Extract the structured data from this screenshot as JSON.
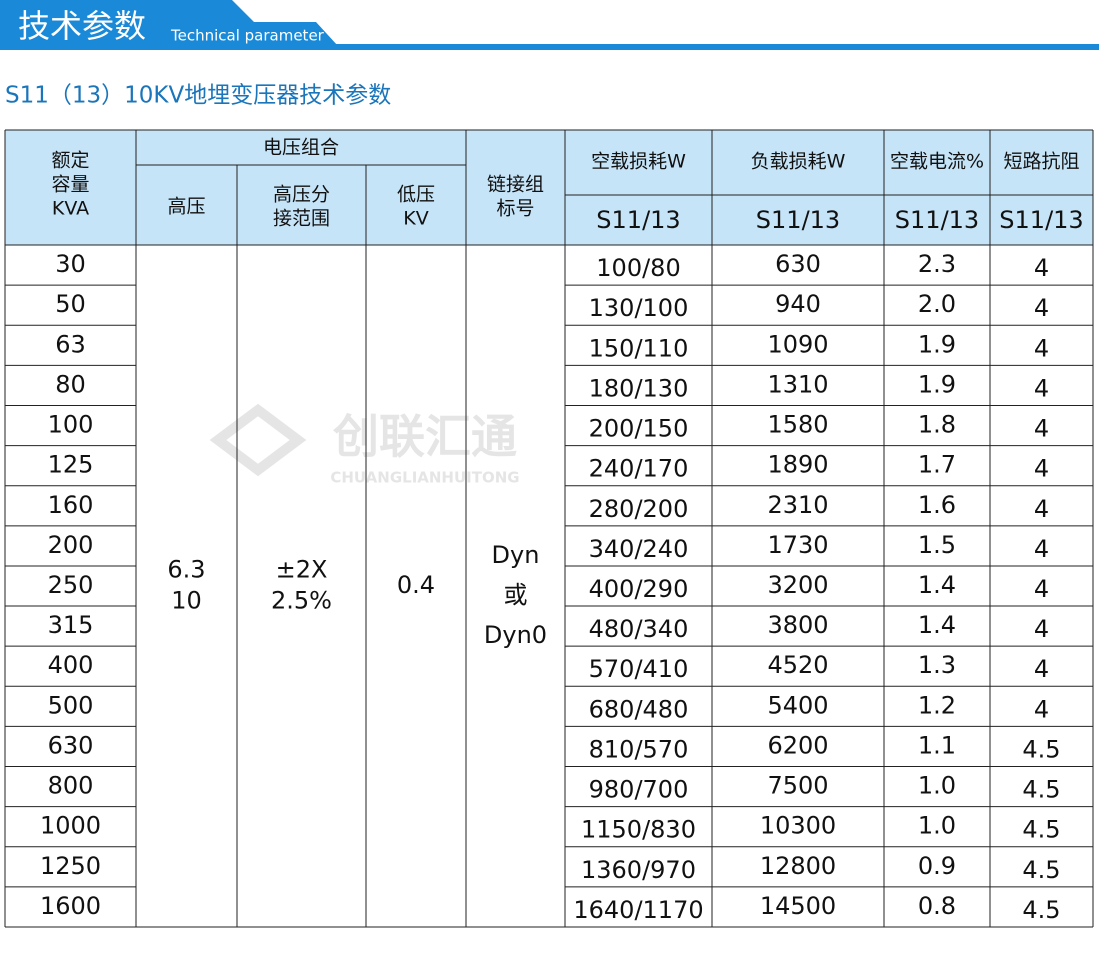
{
  "header": {
    "title": "技术参数",
    "title_en": "Technical parameter"
  },
  "subtitle": "S11（13）10KV地埋变压器技术参数",
  "watermark": {
    "name": "创联汇通",
    "name_en": "CHUANGLIANHUITONG"
  },
  "table": {
    "head": {
      "rated": [
        "额定",
        "容量",
        "KVA"
      ],
      "voltage_group": "电压组合",
      "hv": "高压",
      "tap": [
        "高压分",
        "接范围"
      ],
      "lv": [
        "低压",
        "KV"
      ],
      "vector": [
        "链接组",
        "标号"
      ],
      "no_load_loss": "空载损耗W",
      "load_loss": "负载损耗W",
      "no_load_current": "空载电流%",
      "impedance": "短路抗阻",
      "models": [
        "S11/13",
        "S11/13",
        "S11/13",
        "S11/13"
      ]
    },
    "merged": {
      "hv": [
        "6.3",
        "10"
      ],
      "tap": [
        "±2X",
        "2.5%"
      ],
      "lv": "0.4",
      "vector": [
        "Dyn",
        "或",
        "Dyn0"
      ]
    },
    "rows": [
      [
        "30",
        "100/80",
        "630",
        "2.3",
        "4"
      ],
      [
        "50",
        "130/100",
        "940",
        "2.0",
        "4"
      ],
      [
        "63",
        "150/110",
        "1090",
        "1.9",
        "4"
      ],
      [
        "80",
        "180/130",
        "1310",
        "1.9",
        "4"
      ],
      [
        "100",
        "200/150",
        "1580",
        "1.8",
        "4"
      ],
      [
        "125",
        "240/170",
        "1890",
        "1.7",
        "4"
      ],
      [
        "160",
        "280/200",
        "2310",
        "1.6",
        "4"
      ],
      [
        "200",
        "340/240",
        "1730",
        "1.5",
        "4"
      ],
      [
        "250",
        "400/290",
        "3200",
        "1.4",
        "4"
      ],
      [
        "315",
        "480/340",
        "3800",
        "1.4",
        "4"
      ],
      [
        "400",
        "570/410",
        "4520",
        "1.3",
        "4"
      ],
      [
        "500",
        "680/480",
        "5400",
        "1.2",
        "4"
      ],
      [
        "630",
        "810/570",
        "6200",
        "1.1",
        "4.5"
      ],
      [
        "800",
        "980/700",
        "7500",
        "1.0",
        "4.5"
      ],
      [
        "1000",
        "1150/830",
        "10300",
        "1.0",
        "4.5"
      ],
      [
        "1250",
        "1360/970",
        "12800",
        "0.9",
        "4.5"
      ],
      [
        "1600",
        "1640/1170",
        "14500",
        "0.8",
        "4.5"
      ]
    ]
  }
}
